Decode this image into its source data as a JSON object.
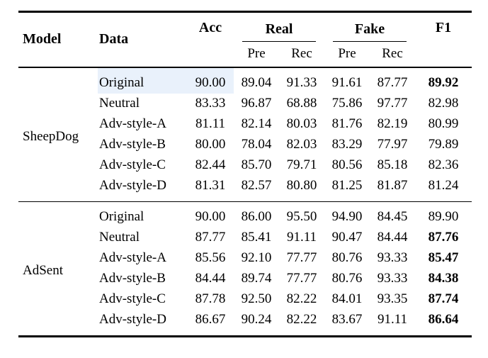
{
  "page": {
    "background": "#ffffff"
  },
  "table": {
    "headers": {
      "model": "Model",
      "data": "Data",
      "acc": "Acc",
      "real": "Real",
      "fake": "Fake",
      "f1": "F1",
      "real_pre": "Pre",
      "real_rec": "Rec",
      "fake_pre": "Pre",
      "fake_rec": "Rec"
    },
    "highlight_color": "#e9f1fb",
    "groups": [
      {
        "model": "SheepDog",
        "rows": [
          {
            "data": "Original",
            "acc": "90.00",
            "real_pre": "89.04",
            "real_rec": "91.33",
            "fake_pre": "91.61",
            "fake_rec": "87.77",
            "f1": "89.92",
            "f1_bold": true,
            "highlight": true
          },
          {
            "data": "Neutral",
            "acc": "83.33",
            "real_pre": "96.87",
            "real_rec": "68.88",
            "fake_pre": "75.86",
            "fake_rec": "97.77",
            "f1": "82.98",
            "f1_bold": false,
            "highlight": false
          },
          {
            "data": "Adv-style-A",
            "acc": "81.11",
            "real_pre": "82.14",
            "real_rec": "80.03",
            "fake_pre": "81.76",
            "fake_rec": "82.19",
            "f1": "80.99",
            "f1_bold": false,
            "highlight": false
          },
          {
            "data": "Adv-style-B",
            "acc": "80.00",
            "real_pre": "78.04",
            "real_rec": "82.03",
            "fake_pre": "83.29",
            "fake_rec": "77.97",
            "f1": "79.89",
            "f1_bold": false,
            "highlight": false
          },
          {
            "data": "Adv-style-C",
            "acc": "82.44",
            "real_pre": "85.70",
            "real_rec": "79.71",
            "fake_pre": "80.56",
            "fake_rec": "85.18",
            "f1": "82.36",
            "f1_bold": false,
            "highlight": false
          },
          {
            "data": "Adv-style-D",
            "acc": "81.31",
            "real_pre": "82.57",
            "real_rec": "80.80",
            "fake_pre": "81.25",
            "fake_rec": "81.87",
            "f1": "81.24",
            "f1_bold": false,
            "highlight": false
          }
        ]
      },
      {
        "model": "AdSent",
        "rows": [
          {
            "data": "Original",
            "acc": "90.00",
            "real_pre": "86.00",
            "real_rec": "95.50",
            "fake_pre": "94.90",
            "fake_rec": "84.45",
            "f1": "89.90",
            "f1_bold": false,
            "highlight": false
          },
          {
            "data": "Neutral",
            "acc": "87.77",
            "real_pre": "85.41",
            "real_rec": "91.11",
            "fake_pre": "90.47",
            "fake_rec": "84.44",
            "f1": "87.76",
            "f1_bold": true,
            "highlight": false
          },
          {
            "data": "Adv-style-A",
            "acc": "85.56",
            "real_pre": "92.10",
            "real_rec": "77.77",
            "fake_pre": "80.76",
            "fake_rec": "93.33",
            "f1": "85.47",
            "f1_bold": true,
            "highlight": false
          },
          {
            "data": "Adv-style-B",
            "acc": "84.44",
            "real_pre": "89.74",
            "real_rec": "77.77",
            "fake_pre": "80.76",
            "fake_rec": "93.33",
            "f1": "84.38",
            "f1_bold": true,
            "highlight": false
          },
          {
            "data": "Adv-style-C",
            "acc": "87.78",
            "real_pre": "92.50",
            "real_rec": "82.22",
            "fake_pre": "84.01",
            "fake_rec": "93.35",
            "f1": "87.74",
            "f1_bold": true,
            "highlight": false
          },
          {
            "data": "Adv-style-D",
            "acc": "86.67",
            "real_pre": "90.24",
            "real_rec": "82.22",
            "fake_pre": "83.67",
            "fake_rec": "91.11",
            "f1": "86.64",
            "f1_bold": true,
            "highlight": false
          }
        ]
      }
    ]
  }
}
